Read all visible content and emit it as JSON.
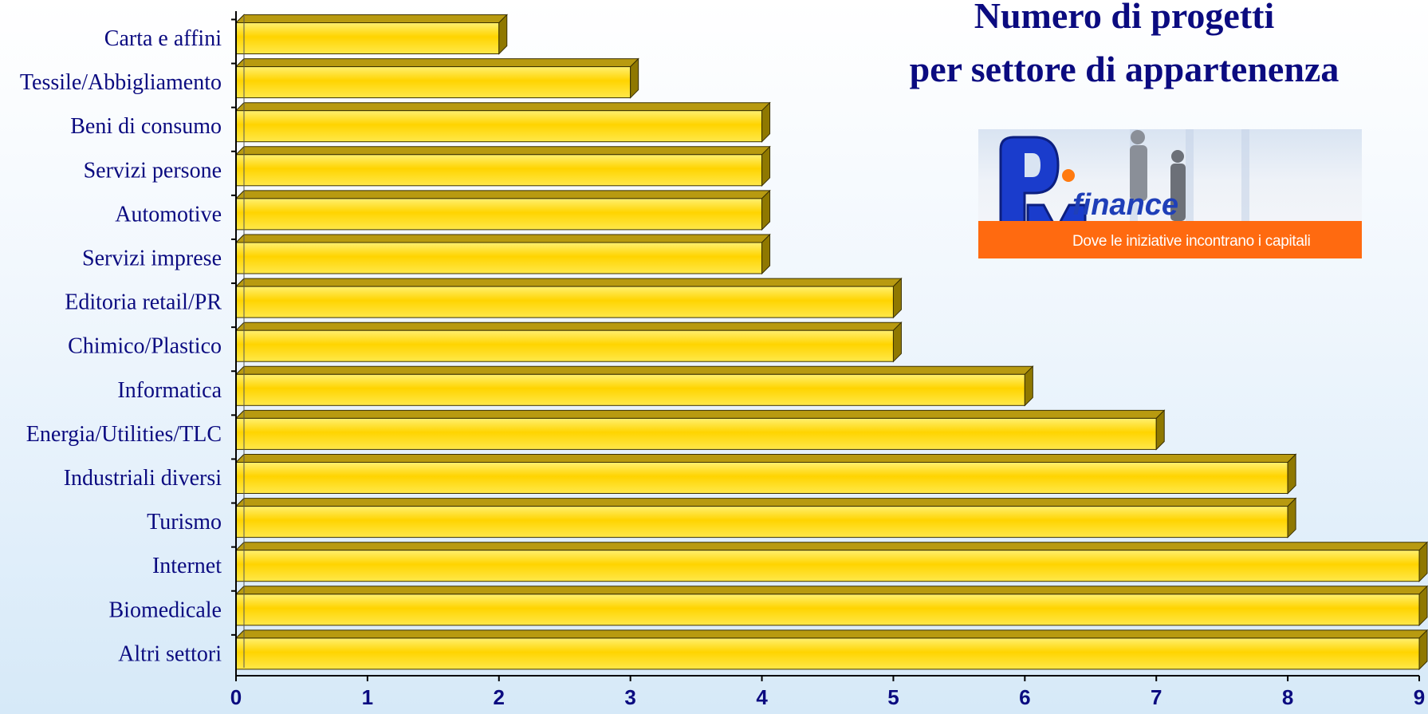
{
  "chart_data": {
    "type": "bar",
    "orientation": "horizontal",
    "title_lines": [
      "Numero di progetti",
      "per settore di appartenenza"
    ],
    "categories": [
      "Carta e affini",
      "Tessile/Abbigliamento",
      "Beni di consumo",
      "Servizi persone",
      "Automotive",
      "Servizi imprese",
      "Editoria retail/PR",
      "Chimico/Plastico",
      "Informatica",
      "Energia/Utilities/TLC",
      "Industriali diversi",
      "Turismo",
      "Internet",
      "Biomedicale",
      "Altri settori"
    ],
    "values": [
      2,
      3,
      4,
      4,
      4,
      4,
      5,
      5,
      6,
      7,
      8,
      8,
      9,
      9,
      9
    ],
    "xlim": [
      0,
      9
    ],
    "x_ticks": [
      "0",
      "1",
      "2",
      "3",
      "4",
      "5",
      "6",
      "7",
      "8",
      "9"
    ],
    "grid": false,
    "bar_color": "#ffd700",
    "label_color": "#0b0b80"
  },
  "logo": {
    "brand": "finance",
    "tagline": "Dove le iniziative incontrano i capitali",
    "band_color": "#ff6a10"
  }
}
